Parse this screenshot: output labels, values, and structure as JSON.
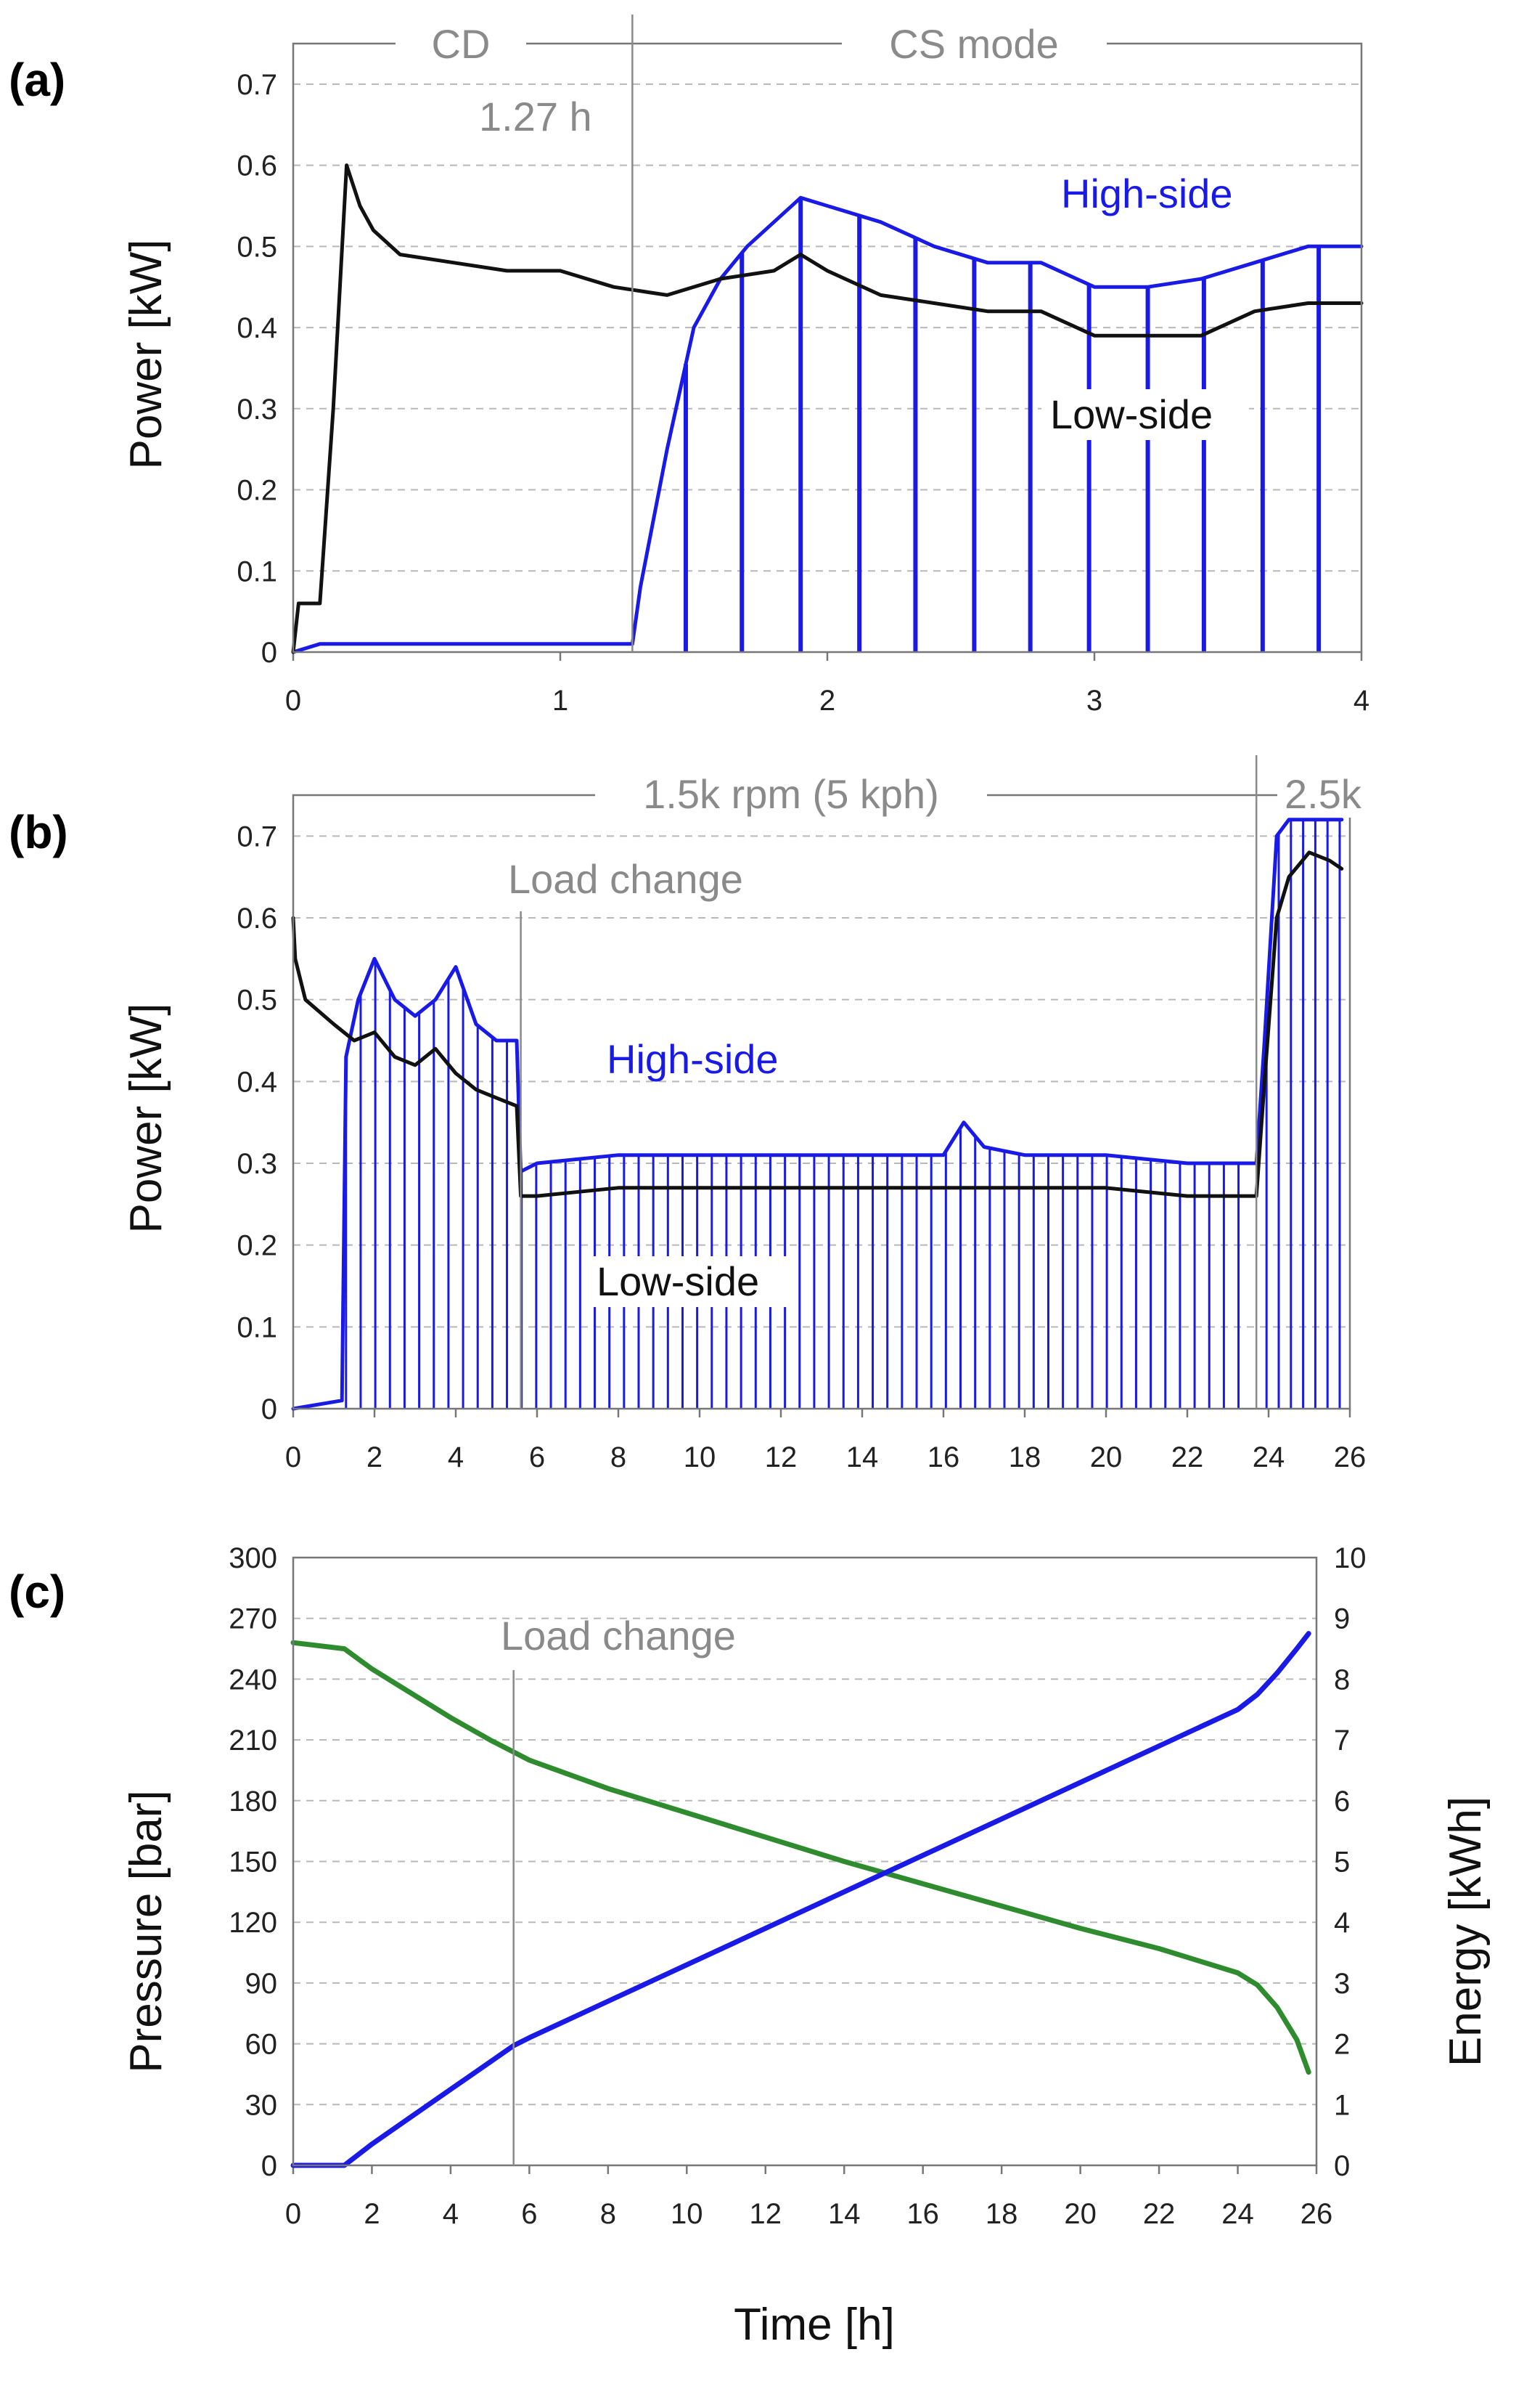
{
  "chart_data": [
    {
      "panel": "(a)",
      "type": "line",
      "ylabel": "Power [kW]",
      "xlim": [
        0,
        4
      ],
      "ylim": [
        0,
        0.75
      ],
      "x_ticks": [
        "0",
        "1",
        "2",
        "3",
        "4"
      ],
      "y_ticks": [
        "0",
        "0.1",
        "0.2",
        "0.3",
        "0.4",
        "0.5",
        "0.6",
        "0.7"
      ],
      "grid": true,
      "annotations": {
        "cd": "CD",
        "cs_mode": "CS mode",
        "switch_time": "1.27 h",
        "switch_x": 1.27
      },
      "series": [
        {
          "name": "High-side",
          "color": "#1a1ae6",
          "x": [
            0,
            0.1,
            0.2,
            0.5,
            1.0,
            1.27,
            1.3,
            1.4,
            1.5,
            1.6,
            1.7,
            1.8,
            1.9,
            2.0,
            2.2,
            2.4,
            2.6,
            2.8,
            3.0,
            3.2,
            3.4,
            3.6,
            3.8,
            4.0
          ],
          "y": [
            0.0,
            0.01,
            0.01,
            0.01,
            0.01,
            0.01,
            0.08,
            0.25,
            0.4,
            0.46,
            0.5,
            0.53,
            0.56,
            0.55,
            0.53,
            0.5,
            0.48,
            0.48,
            0.45,
            0.45,
            0.46,
            0.48,
            0.5,
            0.5
          ],
          "drop_spikes_x": [
            1.47,
            1.68,
            1.9,
            2.12,
            2.33,
            2.55,
            2.76,
            2.98,
            3.2,
            3.41,
            3.63,
            3.84
          ]
        },
        {
          "name": "Low-side",
          "color": "#111111",
          "x": [
            0,
            0.02,
            0.1,
            0.15,
            0.2,
            0.25,
            0.3,
            0.4,
            0.6,
            0.8,
            1.0,
            1.2,
            1.4,
            1.6,
            1.8,
            1.9,
            2.0,
            2.2,
            2.4,
            2.6,
            2.8,
            3.0,
            3.2,
            3.4,
            3.6,
            3.8,
            4.0
          ],
          "y": [
            0.0,
            0.06,
            0.06,
            0.3,
            0.6,
            0.55,
            0.52,
            0.49,
            0.48,
            0.47,
            0.47,
            0.45,
            0.44,
            0.46,
            0.47,
            0.49,
            0.47,
            0.44,
            0.43,
            0.42,
            0.42,
            0.39,
            0.39,
            0.39,
            0.42,
            0.43,
            0.43
          ]
        }
      ]
    },
    {
      "panel": "(b)",
      "type": "line",
      "ylabel": "Power [kW]",
      "xlim": [
        0,
        26
      ],
      "ylim": [
        0,
        0.75
      ],
      "x_ticks": [
        "0",
        "2",
        "4",
        "6",
        "8",
        "10",
        "12",
        "14",
        "16",
        "18",
        "20",
        "22",
        "24",
        "26"
      ],
      "y_ticks": [
        "0",
        "0.1",
        "0.2",
        "0.3",
        "0.4",
        "0.5",
        "0.6",
        "0.7"
      ],
      "grid": true,
      "annotations": {
        "speed_low": "1.5k rpm (5 kph)",
        "speed_high": "2.5k",
        "load_change": "Load change",
        "load_change_x": 5.6,
        "speed_change_x": 23.7
      },
      "series": [
        {
          "name": "High-side",
          "color": "#1a1ae6",
          "x": [
            0,
            1.2,
            1.3,
            1.6,
            2.0,
            2.5,
            3.0,
            3.5,
            4.0,
            4.5,
            5.0,
            5.5,
            5.6,
            6.0,
            8.0,
            10.0,
            12.0,
            14.0,
            16.0,
            16.5,
            17.0,
            18.0,
            20.0,
            22.0,
            23.7,
            23.9,
            24.2,
            24.5,
            25.0,
            25.5,
            25.8
          ],
          "y": [
            0.0,
            0.01,
            0.43,
            0.5,
            0.55,
            0.5,
            0.48,
            0.5,
            0.54,
            0.47,
            0.45,
            0.45,
            0.29,
            0.3,
            0.31,
            0.31,
            0.31,
            0.31,
            0.31,
            0.35,
            0.32,
            0.31,
            0.31,
            0.3,
            0.3,
            0.45,
            0.7,
            0.72,
            0.72,
            0.72,
            0.72
          ],
          "drop_spike_interval_h": 0.36
        },
        {
          "name": "Low-side",
          "color": "#111111",
          "x": [
            0,
            0.05,
            0.3,
            1.0,
            1.5,
            2.0,
            2.5,
            3.0,
            3.5,
            4.0,
            4.5,
            5.0,
            5.5,
            5.6,
            6.0,
            8.0,
            10.0,
            12.0,
            14.0,
            16.0,
            18.0,
            20.0,
            22.0,
            23.7,
            23.9,
            24.2,
            24.5,
            25.0,
            25.5,
            25.8
          ],
          "y": [
            0.6,
            0.55,
            0.5,
            0.47,
            0.45,
            0.46,
            0.43,
            0.42,
            0.44,
            0.41,
            0.39,
            0.38,
            0.37,
            0.26,
            0.26,
            0.27,
            0.27,
            0.27,
            0.27,
            0.27,
            0.27,
            0.27,
            0.26,
            0.26,
            0.4,
            0.6,
            0.65,
            0.68,
            0.67,
            0.66
          ]
        }
      ]
    },
    {
      "panel": "(c)",
      "type": "line",
      "xlabel": "Time [h]",
      "ylabel": "Pressure [bar]",
      "ylabel_right": "Energy [kWh]",
      "xlim": [
        0,
        26
      ],
      "ylim": [
        0,
        300
      ],
      "ylim_right": [
        0,
        10
      ],
      "x_ticks": [
        "0",
        "2",
        "4",
        "6",
        "8",
        "10",
        "12",
        "14",
        "16",
        "18",
        "20",
        "22",
        "24",
        "26"
      ],
      "y_ticks": [
        "0",
        "30",
        "60",
        "90",
        "120",
        "150",
        "180",
        "210",
        "240",
        "270",
        "300"
      ],
      "y_ticks_right": [
        "0",
        "1",
        "2",
        "3",
        "4",
        "5",
        "6",
        "7",
        "8",
        "9",
        "10"
      ],
      "grid": true,
      "annotations": {
        "load_change": "Load change",
        "load_change_x": 5.6
      },
      "series": [
        {
          "axis": "left",
          "color": "#2e8b2e",
          "x": [
            0,
            1.3,
            2.0,
            3.0,
            4.0,
            5.0,
            5.6,
            6.0,
            8.0,
            10.0,
            12.0,
            14.0,
            16.0,
            18.0,
            20.0,
            22.0,
            23.0,
            24.0,
            24.5,
            25.0,
            25.5,
            25.8
          ],
          "y": [
            258,
            255,
            245,
            233,
            221,
            210,
            204,
            200,
            186,
            174,
            162,
            150,
            139,
            128,
            117,
            107,
            101,
            95,
            89,
            78,
            62,
            46
          ]
        },
        {
          "axis": "right",
          "color": "#1a1ae6",
          "x": [
            0,
            1.3,
            2.0,
            3.0,
            4.0,
            5.0,
            5.6,
            6.0,
            8.0,
            10.0,
            12.0,
            14.0,
            16.0,
            18.0,
            20.0,
            22.0,
            23.0,
            24.0,
            24.5,
            25.0,
            25.5,
            25.8
          ],
          "y": [
            0,
            0,
            0.35,
            0.8,
            1.25,
            1.7,
            1.97,
            2.1,
            2.7,
            3.3,
            3.9,
            4.5,
            5.1,
            5.7,
            6.3,
            6.9,
            7.2,
            7.5,
            7.75,
            8.1,
            8.5,
            8.75
          ]
        }
      ]
    }
  ]
}
